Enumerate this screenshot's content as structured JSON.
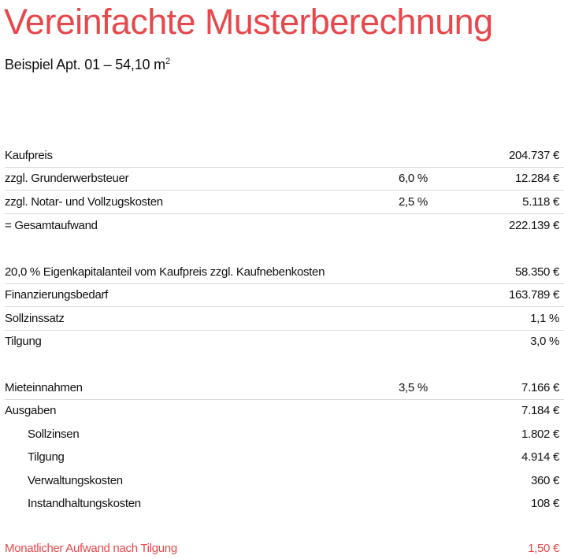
{
  "title": "Vereinfachte Musterberechnung",
  "subtitle": {
    "text": "Beispiel Apt. 01 – 54,10 m",
    "sup": "2"
  },
  "sections": [
    {
      "rows": [
        {
          "label": "Kaufpreis",
          "pct": "",
          "value": "204.737 €"
        },
        {
          "label": "zzgl. Grunderwerbsteuer",
          "pct": "6,0 %",
          "value": "12.284 €"
        },
        {
          "label": "zzgl. Notar- und Vollzugskosten",
          "pct": "2,5 %",
          "value": "5.118 €"
        },
        {
          "label": "= Gesamtaufwand",
          "pct": "",
          "value": "222.139 €"
        }
      ]
    },
    {
      "rows": [
        {
          "label": "20,0 % Eigenkapitalanteil vom Kaufpreis zzgl. Kaufnebenkosten",
          "pct": "",
          "value": "58.350 €"
        },
        {
          "label": "Finanzierungsbedarf",
          "pct": "",
          "value": "163.789 €"
        },
        {
          "label": "Sollzinssatz",
          "pct": "",
          "value": "1,1 %"
        },
        {
          "label": "Tilgung",
          "pct": "",
          "value": "3,0 %"
        }
      ]
    },
    {
      "rows": [
        {
          "label": "Mieteinnahmen",
          "pct": "3,5 %",
          "value": "7.166 €"
        },
        {
          "label": "Ausgaben",
          "pct": "",
          "value": "7.184 €"
        },
        {
          "label": "Sollzinsen",
          "pct": "",
          "value": "1.802 €"
        },
        {
          "label": "Tilgung",
          "pct": "",
          "value": "4.914 €"
        },
        {
          "label": "Verwaltungskosten",
          "pct": "",
          "value": "360 €"
        },
        {
          "label": "Instandhaltungskosten",
          "pct": "",
          "value": "108 €"
        }
      ]
    }
  ],
  "result": {
    "label": "Monatlicher Aufwand nach Tilgung",
    "value": "1,50 €"
  },
  "colors": {
    "accent": "#e8474b",
    "text": "#111111",
    "divider": "#d9d9d9"
  }
}
